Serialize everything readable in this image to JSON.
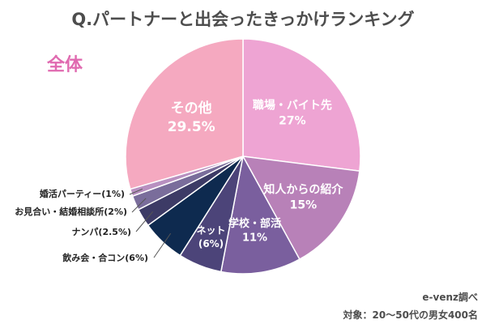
{
  "chart_data": {
    "type": "pie",
    "title": "Q.パートナーと出会ったきっかけランキング",
    "subtitle": "全体",
    "subtitle_color": "#e06ab0",
    "start_angle_deg": 0,
    "direction": "clockwise",
    "slices": [
      {
        "name": "職場・バイト先",
        "percent_label": "27%",
        "value": 27,
        "color": "#eea4d3",
        "label_placement": "inside",
        "label_color": "#ffffff"
      },
      {
        "name": "知人からの紹介",
        "percent_label": "15%",
        "value": 15,
        "color": "#b881b8",
        "label_placement": "inside",
        "label_color": "#ffffff"
      },
      {
        "name": "学校・部活",
        "percent_label": "11%",
        "value": 11,
        "color": "#7a5f9e",
        "label_placement": "inside",
        "label_color": "#ffffff"
      },
      {
        "name": "ネット",
        "percent_label": "(6%)",
        "value": 6,
        "color": "#4c4479",
        "label_placement": "inside",
        "label_color": "#ffffff"
      },
      {
        "name": "飲み会・合コン(6%)",
        "value": 6,
        "color": "#0e2a4f",
        "label_placement": "outside",
        "label_color": "#222222"
      },
      {
        "name": "ナンパ(2.5%)",
        "value": 2.5,
        "color": "#3d3b66",
        "label_placement": "outside",
        "label_color": "#222222"
      },
      {
        "name": "お見合い・結婚相談所(2%)",
        "value": 2,
        "color": "#7a6d9b",
        "label_placement": "outside",
        "label_color": "#222222"
      },
      {
        "name": "婚活パーティー(1%)",
        "value": 1,
        "color": "#b890c0",
        "label_placement": "outside",
        "label_color": "#222222"
      },
      {
        "name": "その他",
        "percent_label": "29.5%",
        "value": 29.5,
        "color": "#f5a9c0",
        "label_placement": "inside",
        "label_color": "#ffffff"
      }
    ]
  },
  "footer": {
    "source": "e-venz調べ",
    "target": "対象：20〜50代の男女400名"
  }
}
